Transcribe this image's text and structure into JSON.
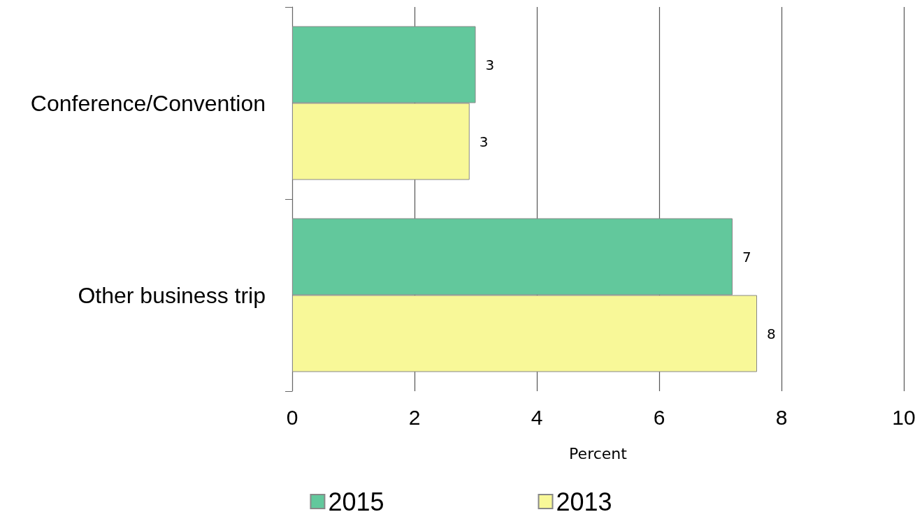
{
  "chart_data": {
    "type": "bar",
    "orientation": "horizontal",
    "categories": [
      "Conference/Convention",
      "Other business trip"
    ],
    "series": [
      {
        "name": "2015",
        "color": "#62c89c",
        "values": [
          3.0,
          7.2
        ],
        "value_labels": [
          "3",
          "7"
        ]
      },
      {
        "name": "2013",
        "color": "#f8f898",
        "values": [
          2.9,
          7.6
        ],
        "value_labels": [
          "3",
          "8"
        ]
      }
    ],
    "xlabel": "Percent",
    "xlim": [
      0,
      10
    ],
    "xticks": [
      0,
      2,
      4,
      6,
      8,
      10
    ],
    "grid": "x",
    "legend": "bottom"
  }
}
